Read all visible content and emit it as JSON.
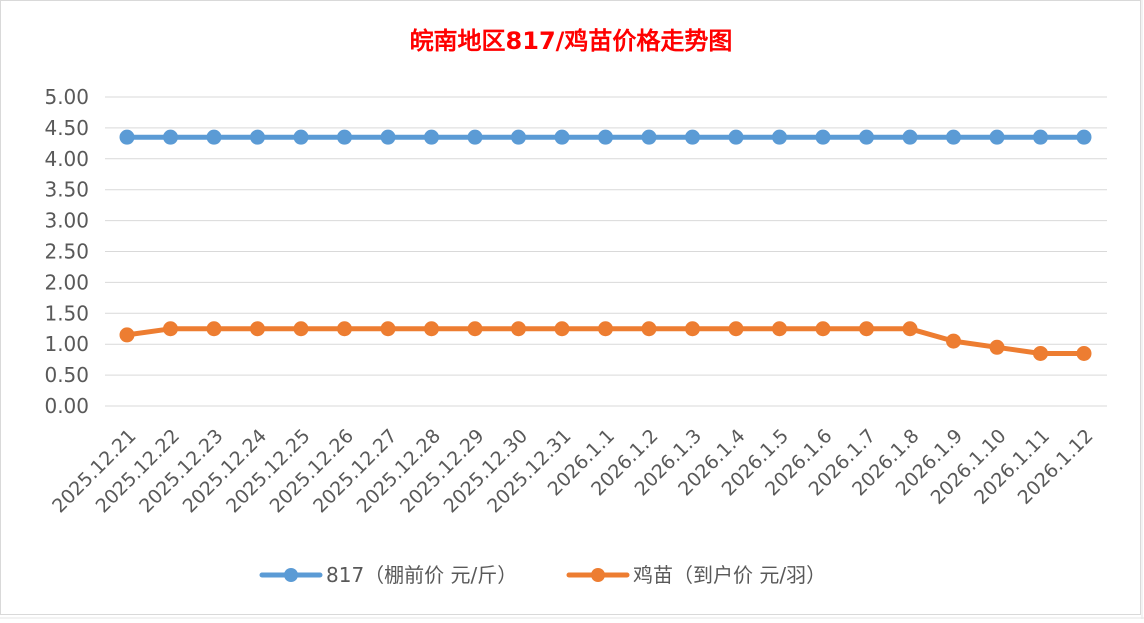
{
  "chart_data": {
    "type": "line",
    "title": "皖南地区817/鸡苗价格走势图",
    "title_color": "#ff0000",
    "xlabel": "",
    "ylabel": "",
    "ylim": [
      0,
      5
    ],
    "yticks": [
      "0.00",
      "0.50",
      "1.00",
      "1.50",
      "2.00",
      "2.50",
      "3.00",
      "3.50",
      "4.00",
      "4.50",
      "5.00"
    ],
    "grid": true,
    "legend_position": "bottom",
    "categories": [
      "2025.12.21",
      "2025.12.22",
      "2025.12.23",
      "2025.12.24",
      "2025.12.25",
      "2025.12.26",
      "2025.12.27",
      "2025.12.28",
      "2025.12.29",
      "2025.12.30",
      "2025.12.31",
      "2026.1.1",
      "2026.1.2",
      "2026.1.3",
      "2026.1.4",
      "2026.1.5",
      "2026.1.6",
      "2026.1.7",
      "2026.1.8",
      "2026.1.9",
      "2026.1.10",
      "2026.1.11",
      "2026.1.12"
    ],
    "series": [
      {
        "name": "817（棚前价 元/斤）",
        "color": "#5b9bd5",
        "values": [
          4.35,
          4.35,
          4.35,
          4.35,
          4.35,
          4.35,
          4.35,
          4.35,
          4.35,
          4.35,
          4.35,
          4.35,
          4.35,
          4.35,
          4.35,
          4.35,
          4.35,
          4.35,
          4.35,
          4.35,
          4.35,
          4.35,
          4.35
        ]
      },
      {
        "name": "鸡苗（到户价 元/羽）",
        "color": "#ed7d31",
        "values": [
          1.15,
          1.25,
          1.25,
          1.25,
          1.25,
          1.25,
          1.25,
          1.25,
          1.25,
          1.25,
          1.25,
          1.25,
          1.25,
          1.25,
          1.25,
          1.25,
          1.25,
          1.25,
          1.25,
          1.05,
          0.95,
          0.85,
          0.85
        ]
      }
    ]
  }
}
